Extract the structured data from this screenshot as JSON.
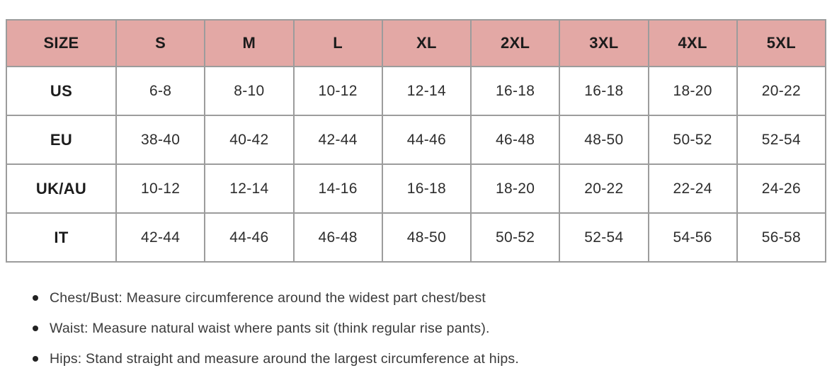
{
  "table": {
    "columns": [
      "SIZE",
      "S",
      "M",
      "L",
      "XL",
      "2XL",
      "3XL",
      "4XL",
      "5XL"
    ],
    "rows": [
      {
        "label": "US",
        "values": [
          "6-8",
          "8-10",
          "10-12",
          "12-14",
          "16-18",
          "16-18",
          "18-20",
          "20-22"
        ]
      },
      {
        "label": "EU",
        "values": [
          "38-40",
          "40-42",
          "42-44",
          "44-46",
          "46-48",
          "48-50",
          "50-52",
          "52-54"
        ]
      },
      {
        "label": "UK/AU",
        "values": [
          "10-12",
          "12-14",
          "14-16",
          "16-18",
          "18-20",
          "20-22",
          "22-24",
          "24-26"
        ]
      },
      {
        "label": "IT",
        "values": [
          "42-44",
          "44-46",
          "46-48",
          "48-50",
          "50-52",
          "52-54",
          "54-56",
          "56-58"
        ]
      }
    ]
  },
  "notes": [
    "Chest/Bust: Measure circumference around the widest part chest/best",
    "Waist: Measure natural waist where pants sit (think regular rise pants).",
    "Hips: Stand straight and measure around the largest circumference at hips."
  ],
  "colors": {
    "row_pink": "#e3a8a5",
    "border_gray": "#9c9c9c",
    "text": "#2d2d2d",
    "background": "#ffffff"
  }
}
